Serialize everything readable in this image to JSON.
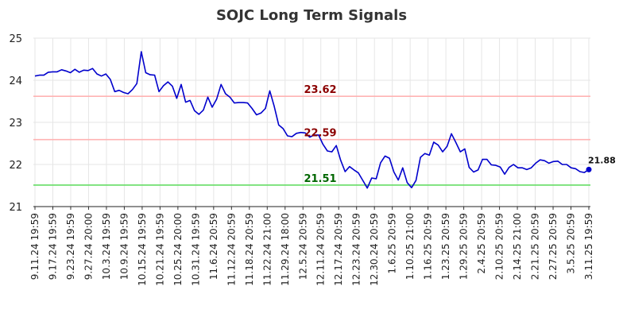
{
  "chart_data": {
    "type": "line",
    "title": "SOJC Long Term Signals",
    "xlabel": "",
    "ylabel": "",
    "ylim": [
      21,
      25
    ],
    "yticks": [
      "21",
      "22",
      "23",
      "24",
      "25"
    ],
    "x_tick_labels": [
      "9.11.24 19:59",
      "9.17.24 19:59",
      "9.23.24 19:59",
      "9.27.24 20:00",
      "10.3.24 19:59",
      "10.9.24 19:59",
      "10.15.24 19:59",
      "10.21.24 19:59",
      "10.25.24 20:00",
      "10.31.24 19:59",
      "11.6.24 20:59",
      "11.12.24 20:59",
      "11.18.24 20:59",
      "11.22.24 21:00",
      "11.29.24 18:00",
      "12.5.24 20:59",
      "12.11.24 20:59",
      "12.17.24 20:59",
      "12.23.24 20:59",
      "12.30.24 20:59",
      "1.6.25 20:59",
      "1.10.25 21:00",
      "1.16.25 20:59",
      "1.23.25 20:59",
      "1.29.25 20:59",
      "2.4.25 20:59",
      "2.10.25 20:59",
      "2.14.25 21:00",
      "2.21.25 20:59",
      "2.27.25 20:59",
      "3.5.25 20:59",
      "3.11.25 19:59"
    ],
    "grid": true,
    "series": [
      {
        "color": "#0000cc",
        "values": [
          24.1,
          24.12,
          24.12,
          24.19,
          24.2,
          24.2,
          24.25,
          24.22,
          24.18,
          24.26,
          24.19,
          24.24,
          24.23,
          24.28,
          24.15,
          24.1,
          24.15,
          24.02,
          23.73,
          23.76,
          23.71,
          23.68,
          23.78,
          23.92,
          24.68,
          24.18,
          24.13,
          24.12,
          23.73,
          23.87,
          23.96,
          23.86,
          23.57,
          23.9,
          23.48,
          23.52,
          23.28,
          23.19,
          23.29,
          23.6,
          23.36,
          23.55,
          23.9,
          23.68,
          23.6,
          23.46,
          23.47,
          23.47,
          23.46,
          23.33,
          23.18,
          23.22,
          23.33,
          23.75,
          23.38,
          22.94,
          22.85,
          22.68,
          22.66,
          22.74,
          22.76,
          22.75,
          22.65,
          22.7,
          22.7,
          22.48,
          22.32,
          22.3,
          22.45,
          22.1,
          21.83,
          21.95,
          21.87,
          21.8,
          21.62,
          21.44,
          21.68,
          21.66,
          22.04,
          22.2,
          22.15,
          21.82,
          21.63,
          21.92,
          21.57,
          21.45,
          21.62,
          22.17,
          22.26,
          22.22,
          22.53,
          22.46,
          22.3,
          22.43,
          22.73,
          22.52,
          22.3,
          22.37,
          21.93,
          21.82,
          21.87,
          22.12,
          22.12,
          21.99,
          21.98,
          21.94,
          21.77,
          21.93,
          22.0,
          21.92,
          21.92,
          21.88,
          21.92,
          22.03,
          22.11,
          22.09,
          22.03,
          22.07,
          22.08,
          22.0,
          22.0,
          21.92,
          21.9,
          21.83,
          21.81,
          21.88
        ]
      }
    ],
    "reference_lines": [
      {
        "value": 23.62,
        "label": "23.62",
        "line_color": "#ffb3b3",
        "label_color": "#8b0000"
      },
      {
        "value": 22.59,
        "label": "22.59",
        "line_color": "#ffb3b3",
        "label_color": "#8b0000"
      },
      {
        "value": 21.51,
        "label": "21.51",
        "line_color": "#66dd66",
        "label_color": "#006600"
      }
    ],
    "last_value_label": "21.88"
  }
}
